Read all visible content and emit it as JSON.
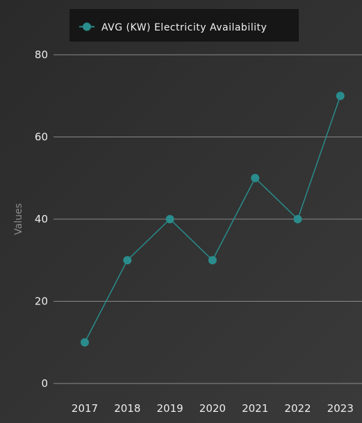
{
  "chart_data": {
    "type": "line",
    "title": "",
    "xlabel": "",
    "ylabel": "Values",
    "categories": [
      "2017",
      "2018",
      "2019",
      "2020",
      "2021",
      "2022",
      "2023"
    ],
    "series": [
      {
        "name": "AVG (KW) Electricity Availability",
        "values": [
          10,
          30,
          40,
          30,
          50,
          40,
          70
        ],
        "color": "#2a8c8c"
      }
    ],
    "ylim": [
      0,
      80
    ],
    "yticks": [
      0,
      20,
      40,
      60,
      80
    ],
    "grid": true,
    "legend_position": "top-left"
  }
}
